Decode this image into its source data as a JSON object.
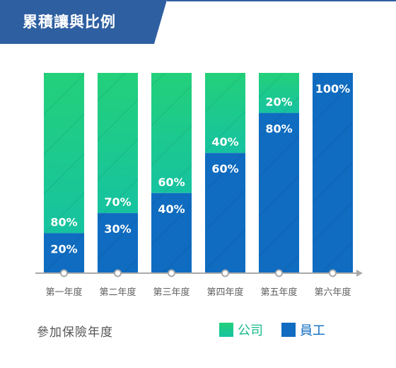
{
  "colors": {
    "header_bg": "#2e5fa1",
    "company_top": "#23d07a",
    "company_bottom": "#16c3a0",
    "employee": "#0f6cc0",
    "axis": "#a9a9a9",
    "tick_label": "#606060"
  },
  "chart_data": {
    "type": "bar",
    "stacked": true,
    "title": "累積讓與比例",
    "xlabel": "參加保險年度",
    "ylim": [
      0,
      100
    ],
    "grid": false,
    "legend_position": "bottom-right",
    "categories": [
      "第一年度",
      "第二年度",
      "第三年度",
      "第四年度",
      "第五年度",
      "第六年度"
    ],
    "series": [
      {
        "name": "員工",
        "color": "#0f6cc0",
        "values": [
          20,
          30,
          40,
          60,
          80,
          100
        ],
        "labels": [
          "20%",
          "30%",
          "40%",
          "60%",
          "80%",
          "100%"
        ]
      },
      {
        "name": "公司",
        "color": "#1fcb88",
        "values": [
          80,
          70,
          60,
          40,
          20,
          0
        ],
        "labels": [
          "80%",
          "70%",
          "60%",
          "40%",
          "20%",
          ""
        ]
      }
    ]
  }
}
